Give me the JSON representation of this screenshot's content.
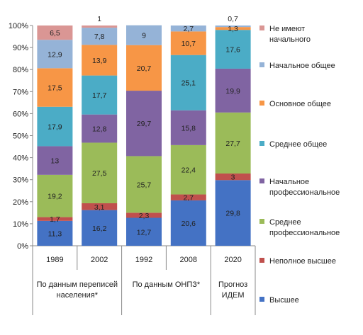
{
  "chart_data": {
    "type": "bar",
    "stacked": true,
    "ylim": [
      0,
      100
    ],
    "y_ticks": [
      "0%",
      "10%",
      "20%",
      "30%",
      "40%",
      "50%",
      "60%",
      "70%",
      "80%",
      "90%",
      "100%"
    ],
    "grid": false,
    "legend_position": "right",
    "categories": [
      "1989",
      "2002",
      "1992",
      "2008",
      "2020"
    ],
    "groups": [
      {
        "label": "По данным переписей населения*",
        "categories": [
          "1989",
          "2002"
        ]
      },
      {
        "label": "По данным ОНПЗ*",
        "categories": [
          "1992",
          "2008"
        ]
      },
      {
        "label": "Прогноз ИДЕМ",
        "categories": [
          "2020"
        ]
      }
    ],
    "series": [
      {
        "name": "Высшее",
        "color": "#4472c4",
        "values": [
          11.3,
          16.2,
          12.7,
          20.6,
          29.8
        ],
        "labels": [
          "11,3",
          "16,2",
          "12,7",
          "20,6",
          "29,8"
        ]
      },
      {
        "name": "Неполное высшее",
        "color": "#c0504d",
        "values": [
          1.7,
          3.1,
          2.3,
          2.7,
          3
        ],
        "labels": [
          "1,7",
          "3,1",
          "2,3",
          "2,7",
          "3"
        ]
      },
      {
        "name": "Среднее профессиональное",
        "color": "#9bbb59",
        "values": [
          19.2,
          27.5,
          25.7,
          22.4,
          27.7
        ],
        "labels": [
          "19,2",
          "27,5",
          "25,7",
          "22,4",
          "27,7"
        ]
      },
      {
        "name": "Начальное профессиональное",
        "color": "#8064a2",
        "values": [
          13,
          12.8,
          29.7,
          15.8,
          19.9
        ],
        "labels": [
          "13",
          "12,8",
          "29,7",
          "15,8",
          "19,9"
        ]
      },
      {
        "name": "Среднее общее",
        "color": "#4bacc6",
        "values": [
          17.9,
          17.7,
          0,
          25.1,
          17.6
        ],
        "labels": [
          "17,9",
          "17,7",
          "",
          "25,1",
          "17,6"
        ]
      },
      {
        "name": "Основное общее",
        "color": "#f79646",
        "values": [
          17.5,
          13.9,
          20.7,
          10.7,
          1.3
        ],
        "labels": [
          "17,5",
          "13,9",
          "20,7",
          "10,7",
          "1,3"
        ]
      },
      {
        "name": "Начальное общее",
        "color": "#95b3d7",
        "values": [
          12.9,
          7.8,
          9,
          2.7,
          0.7
        ],
        "labels": [
          "12,9",
          "7,8",
          "9",
          "2,7",
          "0,7"
        ]
      },
      {
        "name": "Не имеют начального",
        "color": "#da9694",
        "values": [
          6.5,
          1,
          0,
          0,
          0
        ],
        "labels": [
          "6,5",
          "1",
          "",
          "",
          ""
        ]
      }
    ],
    "legend_lines": [
      [
        "Не имеют",
        "начального"
      ],
      [
        "Начальное общее"
      ],
      [
        "Основное общее"
      ],
      [
        "Среднее общее"
      ],
      [
        "Начальное",
        "профессиональное"
      ],
      [
        "Среднее",
        "профессиональное"
      ],
      [
        "Неполное высшее"
      ],
      [
        "Высшее"
      ]
    ]
  }
}
